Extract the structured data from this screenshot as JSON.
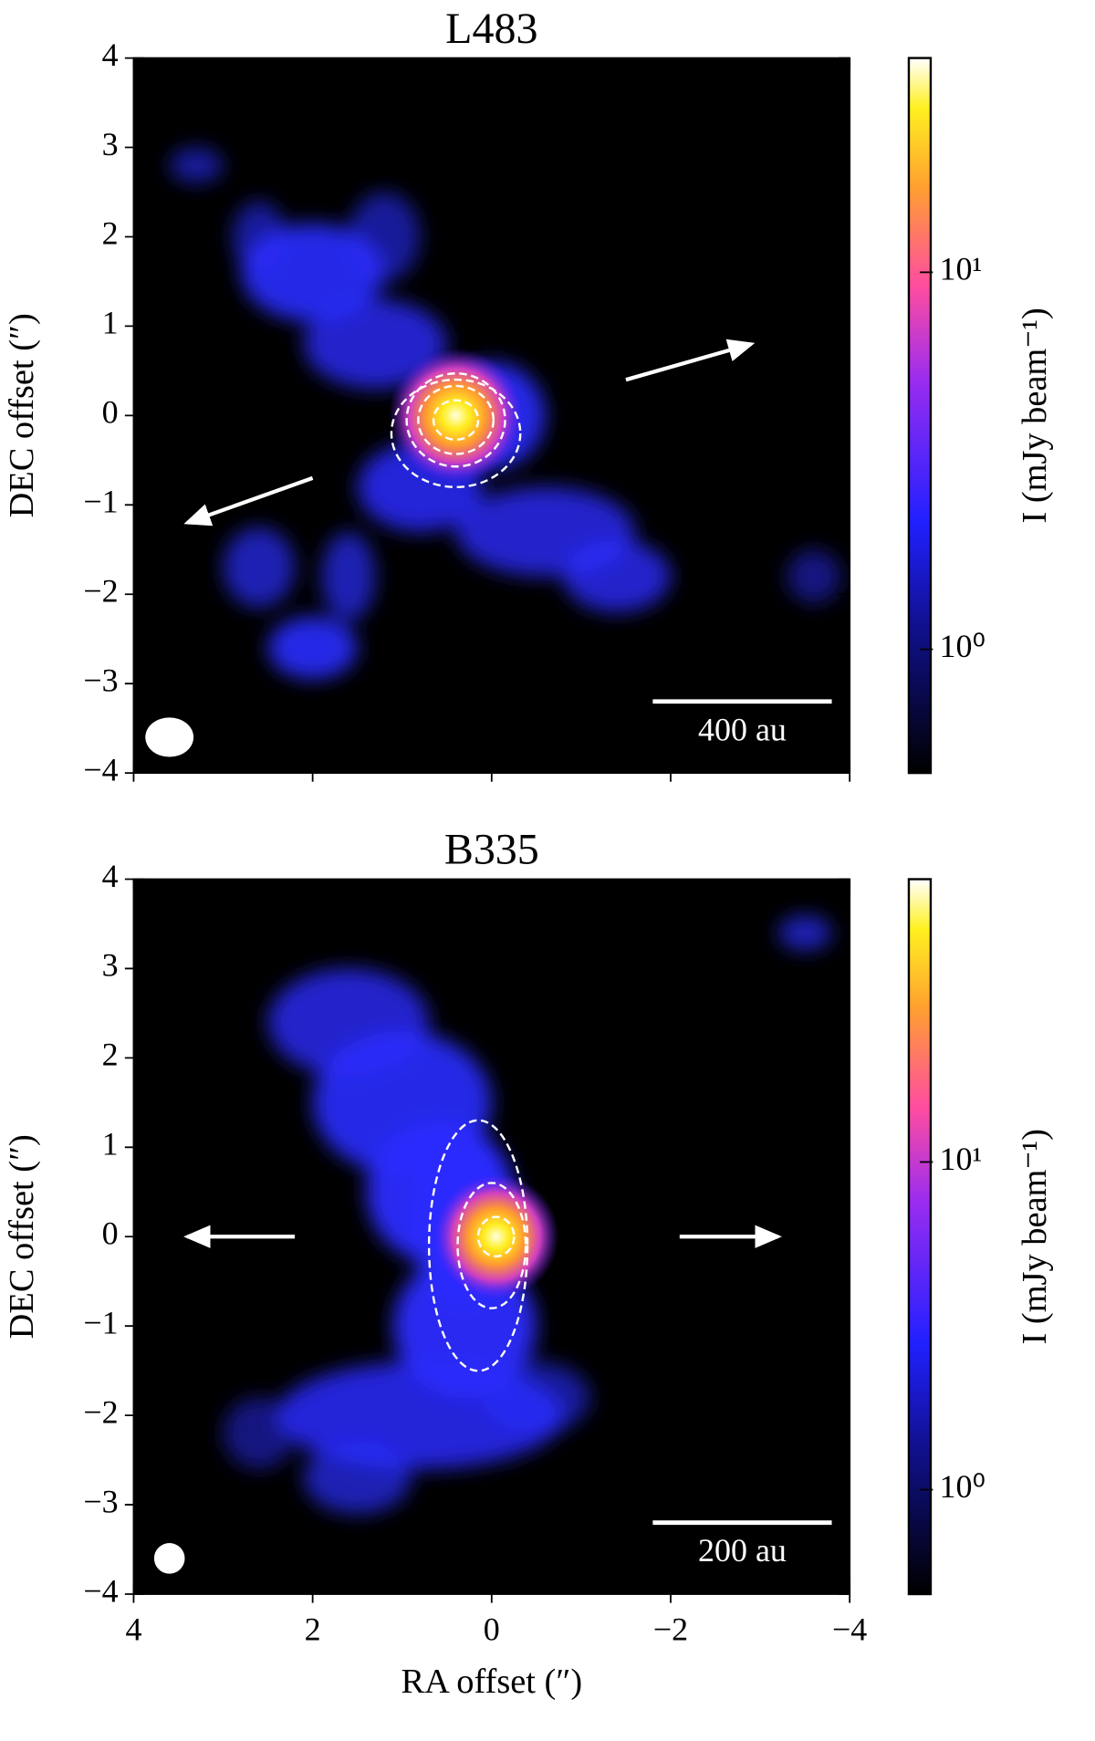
{
  "chart_data": [
    {
      "type": "image",
      "title": "L483",
      "ylabel": "DEC offset (″)",
      "xlim": [
        4,
        -4
      ],
      "ylim": [
        -4,
        4
      ],
      "xticks": [
        4,
        2,
        0,
        -2,
        -4
      ],
      "yticks": [
        {
          "value": -4,
          "label": "−4"
        },
        {
          "value": -3,
          "label": "−3"
        },
        {
          "value": -2,
          "label": "−2"
        },
        {
          "value": -1,
          "label": "−1"
        },
        0,
        1,
        2,
        3,
        4
      ],
      "colorbar": {
        "label": "I (mJy beam⁻¹)",
        "scale": "log",
        "lim": [
          0.47,
          37
        ],
        "ticks": [
          {
            "value": 1,
            "label": "10⁰"
          },
          {
            "value": 10,
            "label": "10¹"
          }
        ]
      },
      "scalebar": "400 au"
    },
    {
      "type": "image",
      "title": "B335",
      "xlabel": "RA offset (″)",
      "ylabel": "DEC offset (″)",
      "xlim": [
        4,
        -4
      ],
      "ylim": [
        -4,
        4
      ],
      "xticks": [
        4,
        2,
        0,
        {
          "value": -2,
          "label": "−2"
        },
        {
          "value": -4,
          "label": "−4"
        }
      ],
      "yticks": [
        {
          "value": -4,
          "label": "−4"
        },
        {
          "value": -3,
          "label": "−3"
        },
        {
          "value": -2,
          "label": "−2"
        },
        {
          "value": -1,
          "label": "−1"
        },
        0,
        1,
        2,
        3,
        4
      ],
      "colorbar": {
        "label": "I (mJy beam⁻¹)",
        "scale": "log",
        "lim": [
          0.48,
          73
        ],
        "ticks": [
          {
            "value": 1,
            "label": "10⁰"
          },
          {
            "value": 10,
            "label": "10¹"
          }
        ]
      },
      "scalebar": "200 au"
    }
  ]
}
